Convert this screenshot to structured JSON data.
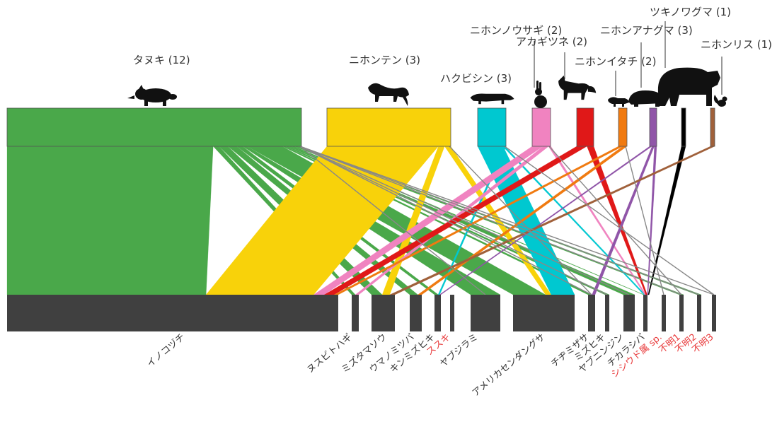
{
  "colors": {
    "plant_bar": "#404040",
    "red_label": "#e8393a",
    "black_label": "#333333"
  },
  "mammals": [
    {
      "name": "タヌキ (12)",
      "color": "#4aa84a",
      "icon": "raccoon-dog-icon"
    },
    {
      "name": "ニホンテン (3)",
      "color": "#f8d20a",
      "icon": "marten-icon"
    },
    {
      "name": "ハクビシン (3)",
      "color": "#00c8d0",
      "icon": "masked-palm-civet-icon"
    },
    {
      "name": "ニホンノウサギ (2)",
      "color": "#f083c0",
      "icon": "hare-icon"
    },
    {
      "name": "アカギツネ (2)",
      "color": "#e01818",
      "icon": "fox-icon"
    },
    {
      "name": "ニホンイタチ (2)",
      "color": "#f07a10",
      "icon": "weasel-icon"
    },
    {
      "name": "ニホンアナグマ (3)",
      "color": "#9055a8",
      "icon": "badger-icon"
    },
    {
      "name": "ツキノワグマ (1)",
      "color": "#000000",
      "icon": "bear-icon"
    },
    {
      "name": "ニホンリス (1)",
      "color": "#a0603a",
      "icon": "squirrel-icon"
    }
  ],
  "plants": [
    {
      "name": "イノコヅチ",
      "red": false
    },
    {
      "name": "ヌスビトハギ",
      "red": false
    },
    {
      "name": "ミズタマソウ",
      "red": false
    },
    {
      "name": "ウマノミツバ",
      "red": false
    },
    {
      "name": "キンミズヒキ",
      "red": false
    },
    {
      "name": "ススキ",
      "red": true
    },
    {
      "name": "ヤブジラミ",
      "red": false
    },
    {
      "name": "アメリカセンダングサ",
      "red": false
    },
    {
      "name": "チヂミザサ",
      "red": false
    },
    {
      "name": "ミズヒキ",
      "red": false
    },
    {
      "name": "ヤブニンジン",
      "red": false
    },
    {
      "name": "チカラシバ",
      "red": false
    },
    {
      "name": "シシウド属 sp.",
      "red": true
    },
    {
      "name": "不明1",
      "red": true
    },
    {
      "name": "不明2",
      "red": true
    },
    {
      "name": "不明3",
      "red": true
    }
  ],
  "links_note": "",
  "links": [
    {
      "from": 0,
      "to": 0,
      "w": 0.7
    },
    {
      "from": 0,
      "to": 1,
      "w": 0.02
    },
    {
      "from": 0,
      "to": 2,
      "w": 0.03
    },
    {
      "from": 0,
      "to": 3,
      "w": 0.03
    },
    {
      "from": 0,
      "to": 4,
      "w": 0.02
    },
    {
      "from": 0,
      "to": 6,
      "w": 0.015
    },
    {
      "from": 0,
      "to": 7,
      "w": 0.12
    },
    {
      "from": 0,
      "to": 8,
      "w": 0.01
    },
    {
      "from": 0,
      "to": 9,
      "w": 0.01
    },
    {
      "from": 0,
      "to": 10,
      "w": 0.01
    },
    {
      "from": 0,
      "to": 11,
      "w": 0.01
    },
    {
      "from": 0,
      "to": 13,
      "w": 0.01
    },
    {
      "from": 0,
      "to": 14,
      "w": 0.01
    },
    {
      "from": 1,
      "to": 0,
      "w": 0.9
    },
    {
      "from": 1,
      "to": 2,
      "w": 0.05
    },
    {
      "from": 1,
      "to": 7,
      "w": 0.05
    },
    {
      "from": 2,
      "to": 7,
      "w": 0.9
    },
    {
      "from": 2,
      "to": 11,
      "w": 0.05
    },
    {
      "from": 2,
      "to": 4,
      "w": 0.05
    },
    {
      "from": 3,
      "to": 0,
      "w": 0.6
    },
    {
      "from": 3,
      "to": 1,
      "w": 0.3
    },
    {
      "from": 3,
      "to": 11,
      "w": 0.1
    },
    {
      "from": 4,
      "to": 0,
      "w": 0.6
    },
    {
      "from": 4,
      "to": 11,
      "w": 0.4
    },
    {
      "from": 5,
      "to": 0,
      "w": 0.5
    },
    {
      "from": 5,
      "to": 3,
      "w": 0.5
    },
    {
      "from": 6,
      "to": 4,
      "w": 0.34
    },
    {
      "from": 6,
      "to": 8,
      "w": 0.33
    },
    {
      "from": 6,
      "to": 11,
      "w": 0.33
    },
    {
      "from": 7,
      "to": 11,
      "w": 1.0
    },
    {
      "from": 8,
      "to": 2,
      "w": 1.0
    }
  ]
}
